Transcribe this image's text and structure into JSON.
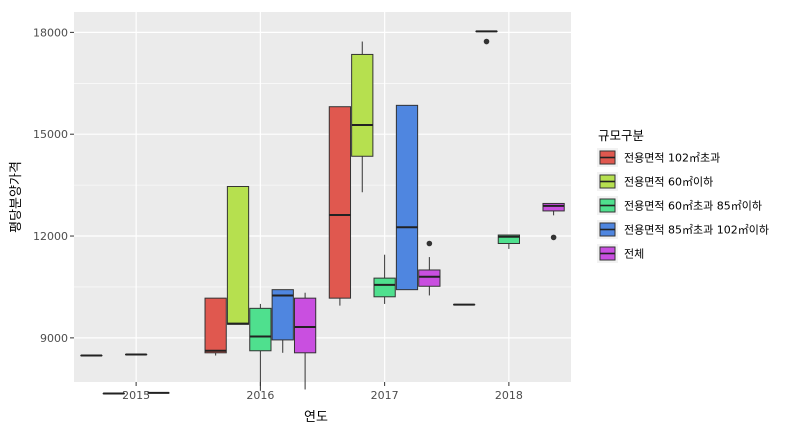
{
  "chart_data": {
    "type": "boxplot",
    "xlabel": "연도",
    "ylabel": "평당분양가격",
    "x_categories": [
      "2015",
      "2016",
      "2017",
      "2018"
    ],
    "ylim": [
      7700,
      18600
    ],
    "y_ticks": [
      9000,
      12000,
      15000,
      18000
    ],
    "y_tick_labels": [
      "9000",
      "12000",
      "15000",
      "18000"
    ],
    "grid": true,
    "legend": {
      "title": "규모구분",
      "position": "right",
      "entries": [
        {
          "name": "전용면적 102㎡초과",
          "color": "#e0584f"
        },
        {
          "name": "전용면적 60㎡이하",
          "color": "#b6e04f"
        },
        {
          "name": "전용면적 60㎡초과 85㎡이하",
          "color": "#4fe08e"
        },
        {
          "name": "전용면적 85㎡초과 102㎡이하",
          "color": "#4f86e0"
        },
        {
          "name": "전체",
          "color": "#c94fe0"
        }
      ]
    },
    "series": [
      {
        "name": "전용면적 102㎡초과",
        "boxes": [
          {
            "x": "2015",
            "min": 8480,
            "q1": 8480,
            "median": 8480,
            "q3": 8480,
            "max": 8480,
            "outliers": []
          },
          {
            "x": "2016",
            "min": 8480,
            "q1": 8560,
            "median": 8620,
            "q3": 10170,
            "max": 10170,
            "outliers": []
          },
          {
            "x": "2017",
            "min": 9950,
            "q1": 10170,
            "median": 12620,
            "q3": 15810,
            "max": 15810,
            "outliers": []
          },
          {
            "x": "2018",
            "min": 9980,
            "q1": 9980,
            "median": 9980,
            "q3": 9980,
            "max": 9980,
            "outliers": []
          }
        ]
      },
      {
        "name": "전용면적 60㎡이하",
        "boxes": [
          {
            "x": "2015",
            "min": 7360,
            "q1": 7360,
            "median": 7360,
            "q3": 7360,
            "max": 7360,
            "outliers": []
          },
          {
            "x": "2016",
            "min": 9400,
            "q1": 9400,
            "median": 9420,
            "q3": 13460,
            "max": 13460,
            "outliers": []
          },
          {
            "x": "2017",
            "min": 13290,
            "q1": 14350,
            "median": 15270,
            "q3": 17350,
            "max": 17730,
            "outliers": []
          },
          {
            "x": "2018",
            "min": 18030,
            "q1": 18030,
            "median": 18030,
            "q3": 18030,
            "max": 18030,
            "outliers": [
              17730
            ]
          }
        ]
      },
      {
        "name": "전용면적 60㎡초과 85㎡이하",
        "boxes": [
          {
            "x": "2015",
            "min": 8510,
            "q1": 8510,
            "median": 8510,
            "q3": 8510,
            "max": 8510,
            "outliers": []
          },
          {
            "x": "2016",
            "min": 7440,
            "q1": 8620,
            "median": 9040,
            "q3": 9870,
            "max": 10000,
            "outliers": []
          },
          {
            "x": "2017",
            "min": 10000,
            "q1": 10210,
            "median": 10560,
            "q3": 10760,
            "max": 11450,
            "outliers": []
          },
          {
            "x": "2018",
            "min": 11620,
            "q1": 11780,
            "median": 11980,
            "q3": 12030,
            "max": 12030,
            "outliers": []
          }
        ]
      },
      {
        "name": "전용면적 85㎡초과 102㎡이하",
        "boxes": [
          {
            "x": "2015",
            "min": 7380,
            "q1": 7380,
            "median": 7380,
            "q3": 7380,
            "max": 7380,
            "outliers": []
          },
          {
            "x": "2016",
            "min": 8560,
            "q1": 8940,
            "median": 10250,
            "q3": 10420,
            "max": 10420,
            "outliers": []
          },
          {
            "x": "2017",
            "min": 10420,
            "q1": 10420,
            "median": 12260,
            "q3": 15850,
            "max": 15850,
            "outliers": []
          }
        ]
      },
      {
        "name": "전체",
        "boxes": [
          {
            "x": "2016",
            "min": 7480,
            "q1": 8560,
            "median": 9320,
            "q3": 10170,
            "max": 10330,
            "outliers": []
          },
          {
            "x": "2017",
            "min": 10250,
            "q1": 10520,
            "median": 10800,
            "q3": 11000,
            "max": 11380,
            "outliers": [
              11780
            ]
          },
          {
            "x": "2018",
            "min": 12610,
            "q1": 12740,
            "median": 12890,
            "q3": 12960,
            "max": 12960,
            "outliers": [
              11960
            ]
          }
        ]
      }
    ]
  }
}
